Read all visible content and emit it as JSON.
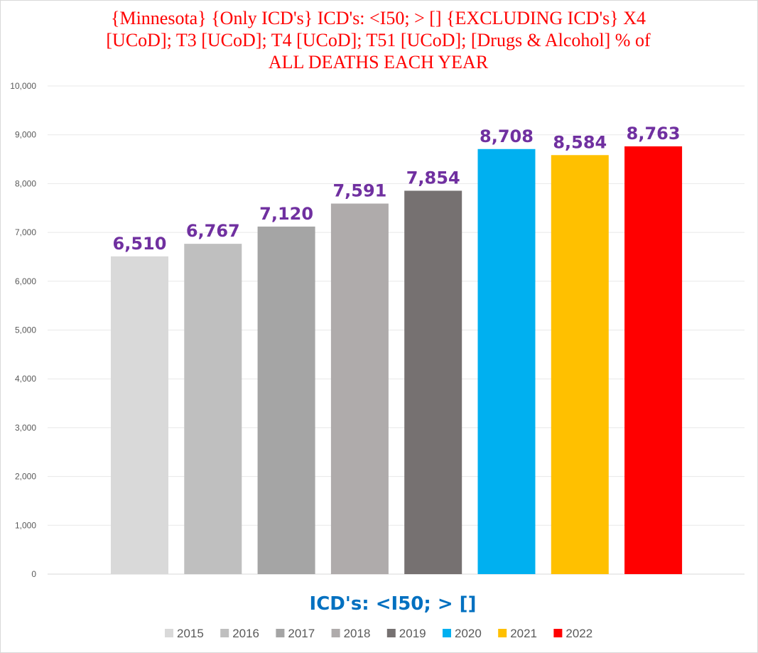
{
  "chart_data": {
    "type": "bar",
    "title": "{Minnesota}  {Only ICD's}  ICD's: <I50; > [] {EXCLUDING ICD's} X4\n[UCoD]; T3 [UCoD]; T4 [UCoD]; T51 [UCoD]; [Drugs & Alcohol]  % of\nALL DEATHS EACH YEAR",
    "xlabel": "ICD's: <I50; > []",
    "ylabel": "",
    "ylim": [
      0,
      10000
    ],
    "yticks": [
      0,
      1000,
      2000,
      3000,
      4000,
      5000,
      6000,
      7000,
      8000,
      9000,
      10000
    ],
    "ytick_labels": [
      "0",
      "1,000",
      "2,000",
      "3,000",
      "4,000",
      "5,000",
      "6,000",
      "7,000",
      "8,000",
      "9,000",
      "10,000"
    ],
    "grid": true,
    "legend_position": "bottom",
    "series": [
      {
        "name": "2015",
        "value": 6510,
        "label": "6,510",
        "color": "#d9d9d9"
      },
      {
        "name": "2016",
        "value": 6767,
        "label": "6,767",
        "color": "#bfbfbf"
      },
      {
        "name": "2017",
        "value": 7120,
        "label": "7,120",
        "color": "#a5a5a5"
      },
      {
        "name": "2018",
        "value": 7591,
        "label": "7,591",
        "color": "#afabab"
      },
      {
        "name": "2019",
        "value": 7854,
        "label": "7,854",
        "color": "#767171"
      },
      {
        "name": "2020",
        "value": 8708,
        "label": "8,708",
        "color": "#00b0f0"
      },
      {
        "name": "2021",
        "value": 8584,
        "label": "8,584",
        "color": "#ffc000"
      },
      {
        "name": "2022",
        "value": 8763,
        "label": "8,763",
        "color": "#ff0000"
      }
    ],
    "data_label_color": "#7030a0",
    "xlabel_color": "#0070c0",
    "title_color": "#ff0000"
  }
}
